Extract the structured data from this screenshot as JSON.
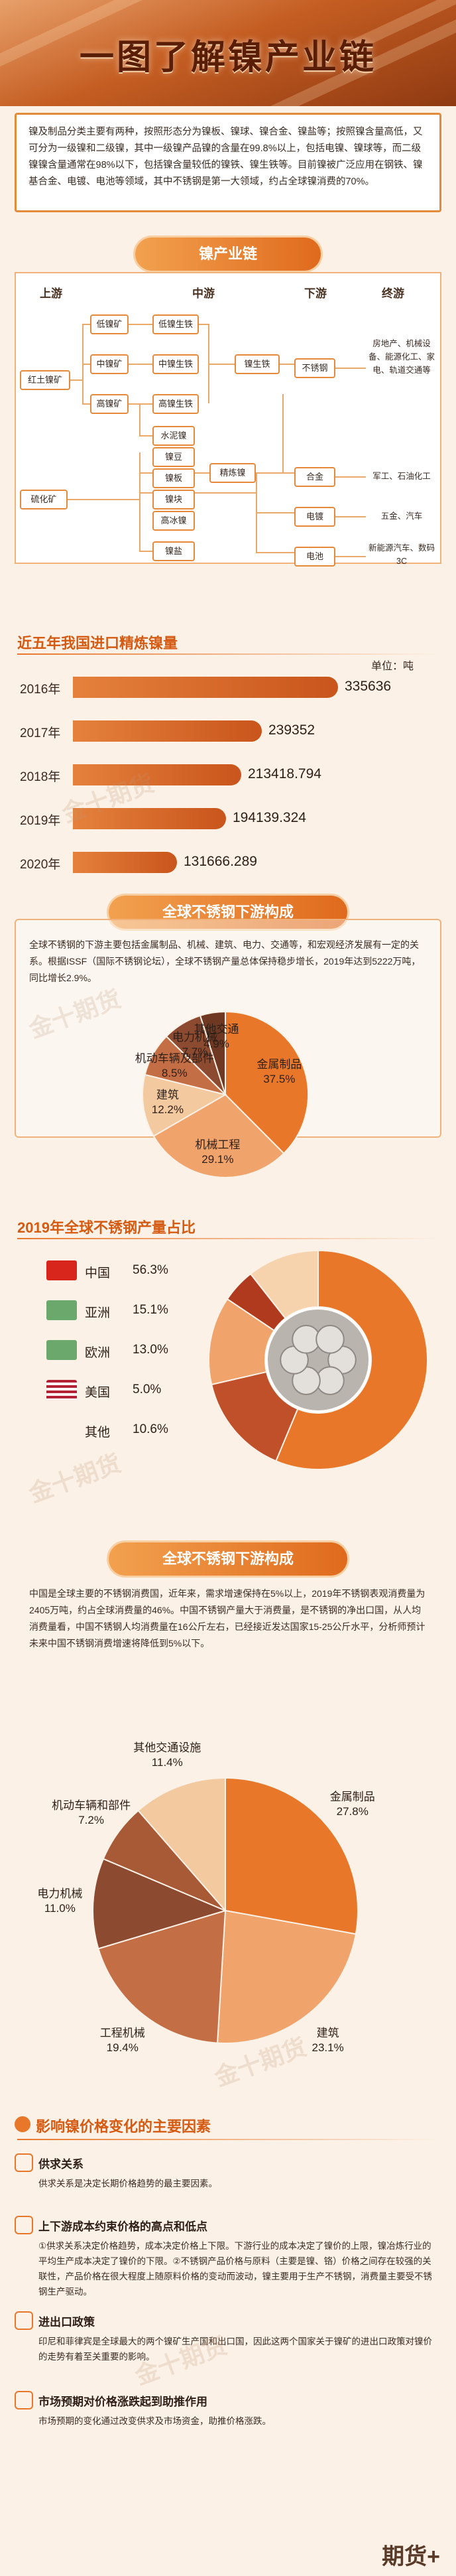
{
  "header": {
    "title": "一图了解镍产业链"
  },
  "intro": {
    "text": "镍及制品分类主要有两种，按照形态分为镍板、镍球、镍合金、镍盐等；按照镍含量高低，又可分为一级镍和二级镍，其中一级镍产品镍的含量在99.8%以上，包括电镍、镍球等，而二级镍镍含量通常在98%以下，包括镍含量较低的镍铁、镍生铁等。目前镍被广泛应用在钢铁、镍基合金、电镀、电池等领域，其中不锈钢是第一大领域，约占全球镍消费的70%。"
  },
  "chain": {
    "banner": "镍产业链",
    "headers": {
      "upstream": "上游",
      "midstream": "中游",
      "downstream": "下游",
      "terminal": "终游"
    },
    "ores": {
      "laterite": "红土镍矿",
      "sulfide": "硫化矿"
    },
    "grades": {
      "low": "低镍矿",
      "mid": "中镍矿",
      "high": "高镍矿"
    },
    "mid": {
      "low_iron": "低镍生铁",
      "mid_iron": "中镍生铁",
      "high_iron": "高镍生铁",
      "iron": "镍生铁",
      "matte": "水泥镍",
      "bead": "镍豆",
      "plate": "镍板",
      "refined": "精炼镍",
      "block": "镍块",
      "hi_matte": "高冰镍",
      "salt": "镍盐"
    },
    "down": {
      "stainless": "不锈钢",
      "alloy": "合金",
      "plating": "电镀",
      "battery": "电池"
    },
    "term": {
      "t1": "房地产、机械设备、能源化工、家电、轨道交通等",
      "t2": "军工、石油化工",
      "t3": "五金、汽车",
      "t4": "新能源汽车、数码3C"
    }
  },
  "imports": {
    "title": "近五年我国进口精炼镍量",
    "unit": "单位：吨",
    "items": [
      {
        "year": "2016年",
        "label": "335636",
        "value": 335636
      },
      {
        "year": "2017年",
        "label": "239352",
        "value": 239352
      },
      {
        "year": "2018年",
        "label": "213418.794",
        "value": 213418.794
      },
      {
        "year": "2019年",
        "label": "194139.324",
        "value": 194139.324
      },
      {
        "year": "2020年",
        "label": "131666.289",
        "value": 131666.289
      }
    ]
  },
  "ss1": {
    "banner": "全球不锈钢下游构成",
    "text": "全球不锈钢的下游主要包括金属制品、机械、建筑、电力、交通等，和宏观经济发展有一定的关系。根据ISSF（国际不锈钢论坛），全球不锈钢产量总体保持稳步增长，2019年达到5222万吨，同比增长2.9%。",
    "slices": [
      {
        "name": "金属制品",
        "pct": "37.5%",
        "value": 37.5,
        "color": "#e8772a"
      },
      {
        "name": "机械工程",
        "pct": "29.1%",
        "value": 29.1,
        "color": "#f0a36a"
      },
      {
        "name": "建筑",
        "pct": "12.2%",
        "value": 12.2,
        "color": "#f3c9a0"
      },
      {
        "name": "机动车辆及部件",
        "pct": "8.5%",
        "value": 8.5,
        "color": "#c46e45"
      },
      {
        "name": "电力机械",
        "pct": "7.7%",
        "value": 7.7,
        "color": "#8c4a30"
      },
      {
        "name": "其他交通",
        "pct": "4.9%",
        "value": 4.9,
        "color": "#6e3822"
      }
    ]
  },
  "ss2": {
    "title": "2019年全球不锈钢产量占比",
    "items": [
      {
        "name": "中国",
        "pct": "56.3%",
        "value": 56.3,
        "color": "#e8772a",
        "icon": "china-flag-icon"
      },
      {
        "name": "亚洲",
        "pct": "15.1%",
        "value": 15.1,
        "color": "#c0502a",
        "icon": "asia-map-icon"
      },
      {
        "name": "欧洲",
        "pct": "13.0%",
        "value": 13.0,
        "color": "#f0a36a",
        "icon": "europe-map-icon"
      },
      {
        "name": "美国",
        "pct": "5.0%",
        "value": 5.0,
        "color": "#b03a1e",
        "icon": "us-flag-icon"
      },
      {
        "name": "其他",
        "pct": "10.6%",
        "value": 10.6,
        "color": "#f6d2ad",
        "icon": ""
      }
    ]
  },
  "ss3": {
    "banner": "全球不锈钢下游构成",
    "text": "中国是全球主要的不锈钢消费国，近年来，需求增速保持在5%以上，2019年不锈钢表观消费量为2405万吨，约占全球消费量的46%。中国不锈钢产量大于消费量，是不锈钢的净出口国，从人均消费量看，中国不锈钢人均消费量在16公斤左右，已经接近发达国家15-25公斤水平，分析师预计未来中国不锈钢消费增速将降低到5%以下。",
    "slices": [
      {
        "name": "金属制品",
        "pct": "27.8%",
        "value": 27.8,
        "color": "#e8772a"
      },
      {
        "name": "建筑",
        "pct": "23.1%",
        "value": 23.1,
        "color": "#f0a36a"
      },
      {
        "name": "工程机械",
        "pct": "19.4%",
        "value": 19.4,
        "color": "#c46e45"
      },
      {
        "name": "电力机械",
        "pct": "11.0%",
        "value": 11.0,
        "color": "#8c4a30"
      },
      {
        "name": "机动车辆和部件",
        "pct": "7.2%",
        "value": 7.2,
        "color": "#a85a36"
      },
      {
        "name": "其他交通设施",
        "pct": "11.4%",
        "value": 11.4,
        "color": "#f3c9a0"
      }
    ]
  },
  "factors": {
    "title": "影响镍价格变化的主要因素",
    "items": [
      {
        "head": "供求关系",
        "text": "供求关系是决定长期价格趋势的最主要因素。"
      },
      {
        "head": "上下游成本约束价格的高点和低点",
        "text": "①供求关系决定价格趋势，成本决定价格上下限。下游行业的成本决定了镍价的上限，镍冶炼行业的平均生产成本决定了镍价的下限。②不锈钢产品价格与原料（主要是镍、铬）价格之间存在较强的关联性，产品价格在很大程度上随原料价格的变动而波动，镍主要用于生产不锈钢，消费量主要受不锈钢生产驱动。"
      },
      {
        "head": "进出口政策",
        "text": "印尼和菲律宾是全球最大的两个镍矿生产国和出口国，因此这两个国家关于镍矿的进出口政策对镍价的走势有着至关重要的影响。"
      },
      {
        "head": "市场预期对价格涨跌起到助推作用",
        "text": "市场预期的变化通过改变供求及市场资金，助推价格涨跌。"
      }
    ]
  },
  "watermark": "金十期货",
  "footer_logo": "期货+"
}
